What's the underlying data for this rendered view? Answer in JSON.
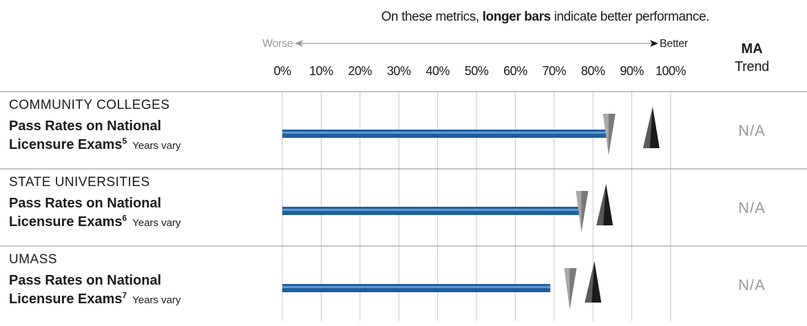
{
  "header": {
    "note_prefix": "On these metrics,",
    "note_bold": "longer bars",
    "note_suffix": "indicate better performance.",
    "worse_label": "Worse",
    "better_label": "Better",
    "ma_label": "MA",
    "trend_label": "Trend"
  },
  "chart_data": {
    "type": "bar",
    "orientation": "horizontal",
    "x_ticks": [
      "0%",
      "10%",
      "20%",
      "30%",
      "40%",
      "50%",
      "60%",
      "70%",
      "80%",
      "90%",
      "100%"
    ],
    "xlim": [
      0,
      100
    ],
    "grid": true,
    "bar_color": "#1f5f9e",
    "peer_marker_color": "#a8a8a8",
    "top_marker_color": "#1a1a1a",
    "rows": [
      {
        "sector": "COMMUNITY COLLEGES",
        "metric": "Pass Rates on National",
        "metric_line2": "Licensure Exams",
        "footnote": "5",
        "years": "Years vary",
        "value": 84,
        "peer_value": 84,
        "top_value": 95,
        "ma_trend": "N/A"
      },
      {
        "sector": "STATE UNIVERSITIES",
        "metric": "Pass Rates on National",
        "metric_line2": "Licensure Exams",
        "footnote": "6",
        "years": "Years vary",
        "value": 77,
        "peer_value": 77,
        "top_value": 83,
        "ma_trend": "N/A"
      },
      {
        "sector": "UMASS",
        "metric": "Pass Rates on National",
        "metric_line2": "Licensure Exams",
        "footnote": "7",
        "years": "Years vary",
        "value": 69,
        "peer_value": 74,
        "top_value": 80,
        "ma_trend": "N/A"
      }
    ]
  }
}
